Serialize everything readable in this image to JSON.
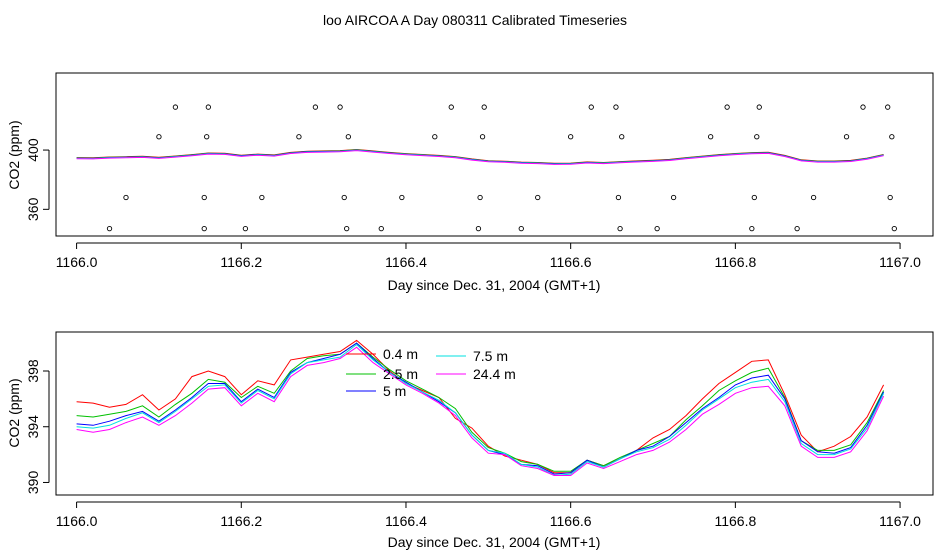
{
  "title": "loo AIRCOA A  Day 080311  Calibrated Timeseries",
  "chart_data": [
    {
      "type": "line",
      "panel": "top",
      "xlabel": "Day since Dec. 31, 2004 (GMT+1)",
      "ylabel": "CO2 (ppm)",
      "xlim": [
        1165.975,
        1167.04
      ],
      "ylim": [
        342,
        452
      ],
      "xticks": [
        "1166.0",
        "1166.2",
        "1166.4",
        "1166.6",
        "1166.8",
        "1167.0"
      ],
      "yticks": [
        "360",
        "400"
      ],
      "grid": false,
      "colors": [
        "#ff0000",
        "#00c000",
        "#0000ff",
        "#00e0e0",
        "#ff00ff"
      ],
      "series_names": [
        "0.4 m",
        "2.5 m",
        "5 m",
        "7.5 m",
        "24.4 m"
      ],
      "line_x": [
        1166.0,
        1166.02,
        1166.04,
        1166.06,
        1166.08,
        1166.1,
        1166.12,
        1166.14,
        1166.16,
        1166.18,
        1166.2,
        1166.22,
        1166.24,
        1166.26,
        1166.28,
        1166.3,
        1166.32,
        1166.34,
        1166.36,
        1166.38,
        1166.4,
        1166.42,
        1166.44,
        1166.46,
        1166.48,
        1166.5,
        1166.52,
        1166.54,
        1166.56,
        1166.58,
        1166.6,
        1166.62,
        1166.64,
        1166.66,
        1166.68,
        1166.7,
        1166.72,
        1166.74,
        1166.76,
        1166.78,
        1166.8,
        1166.82,
        1166.84,
        1166.86,
        1166.88,
        1166.9,
        1166.92,
        1166.94,
        1166.96,
        1166.98
      ],
      "line_y": [
        394.5,
        394.4,
        394.9,
        395.1,
        395.4,
        394.7,
        395.6,
        396.5,
        397.6,
        397.4,
        396.1,
        396.9,
        396.3,
        398.0,
        398.8,
        399.0,
        399.2,
        400.0,
        399.0,
        398.0,
        397.2,
        396.6,
        396.0,
        395.2,
        393.6,
        392.4,
        392.1,
        391.5,
        391.2,
        390.7,
        390.8,
        391.6,
        391.2,
        391.8,
        392.3,
        392.7,
        393.3,
        394.5,
        395.5,
        396.5,
        397.3,
        397.9,
        398.1,
        396.0,
        393.0,
        392.2,
        392.2,
        392.6,
        394.2,
        396.6
      ],
      "points": [
        {
          "x": 1166.04,
          "y": 347
        },
        {
          "x": 1166.06,
          "y": 368
        },
        {
          "x": 1166.1,
          "y": 409
        },
        {
          "x": 1166.12,
          "y": 429
        },
        {
          "x": 1166.155,
          "y": 347
        },
        {
          "x": 1166.155,
          "y": 368
        },
        {
          "x": 1166.158,
          "y": 409
        },
        {
          "x": 1166.16,
          "y": 429
        },
        {
          "x": 1166.205,
          "y": 347
        },
        {
          "x": 1166.225,
          "y": 368
        },
        {
          "x": 1166.27,
          "y": 409
        },
        {
          "x": 1166.29,
          "y": 429
        },
        {
          "x": 1166.32,
          "y": 429
        },
        {
          "x": 1166.325,
          "y": 368
        },
        {
          "x": 1166.328,
          "y": 347
        },
        {
          "x": 1166.33,
          "y": 409
        },
        {
          "x": 1166.37,
          "y": 347
        },
        {
          "x": 1166.395,
          "y": 368
        },
        {
          "x": 1166.435,
          "y": 409
        },
        {
          "x": 1166.455,
          "y": 429
        },
        {
          "x": 1166.488,
          "y": 347
        },
        {
          "x": 1166.49,
          "y": 368
        },
        {
          "x": 1166.493,
          "y": 409
        },
        {
          "x": 1166.495,
          "y": 429
        },
        {
          "x": 1166.54,
          "y": 347
        },
        {
          "x": 1166.56,
          "y": 368
        },
        {
          "x": 1166.6,
          "y": 409
        },
        {
          "x": 1166.625,
          "y": 429
        },
        {
          "x": 1166.655,
          "y": 429
        },
        {
          "x": 1166.658,
          "y": 368
        },
        {
          "x": 1166.66,
          "y": 347
        },
        {
          "x": 1166.662,
          "y": 409
        },
        {
          "x": 1166.705,
          "y": 347
        },
        {
          "x": 1166.725,
          "y": 368
        },
        {
          "x": 1166.77,
          "y": 409
        },
        {
          "x": 1166.79,
          "y": 429
        },
        {
          "x": 1166.82,
          "y": 347
        },
        {
          "x": 1166.823,
          "y": 368
        },
        {
          "x": 1166.826,
          "y": 409
        },
        {
          "x": 1166.829,
          "y": 429
        },
        {
          "x": 1166.875,
          "y": 347
        },
        {
          "x": 1166.895,
          "y": 368
        },
        {
          "x": 1166.935,
          "y": 409
        },
        {
          "x": 1166.955,
          "y": 429
        },
        {
          "x": 1166.985,
          "y": 429
        },
        {
          "x": 1166.988,
          "y": 368
        },
        {
          "x": 1166.99,
          "y": 409
        },
        {
          "x": 1166.993,
          "y": 347
        }
      ]
    },
    {
      "type": "line",
      "panel": "bottom",
      "xlabel": "Day since Dec. 31, 2004 (GMT+1)",
      "ylabel": "CO2 (ppm)",
      "xlim": [
        1165.975,
        1167.04
      ],
      "ylim": [
        389.1,
        400.8
      ],
      "xticks": [
        "1166.0",
        "1166.2",
        "1166.4",
        "1166.6",
        "1166.8",
        "1167.0"
      ],
      "yticks": [
        "390",
        "394",
        "398"
      ],
      "grid": false,
      "legend": "top-center",
      "x": [
        1166.0,
        1166.02,
        1166.04,
        1166.06,
        1166.08,
        1166.1,
        1166.12,
        1166.14,
        1166.16,
        1166.18,
        1166.2,
        1166.22,
        1166.24,
        1166.26,
        1166.28,
        1166.3,
        1166.32,
        1166.34,
        1166.36,
        1166.38,
        1166.4,
        1166.42,
        1166.44,
        1166.46,
        1166.48,
        1166.5,
        1166.52,
        1166.54,
        1166.56,
        1166.58,
        1166.6,
        1166.62,
        1166.64,
        1166.66,
        1166.68,
        1166.7,
        1166.72,
        1166.74,
        1166.76,
        1166.78,
        1166.8,
        1166.82,
        1166.84,
        1166.86,
        1166.88,
        1166.9,
        1166.92,
        1166.94,
        1166.96,
        1166.98
      ],
      "series": [
        {
          "name": "0.4 m",
          "color": "#ff0000",
          "values": [
            395.8,
            395.7,
            395.4,
            395.6,
            396.3,
            395.2,
            396.0,
            397.6,
            398.0,
            397.6,
            396.3,
            397.3,
            397.0,
            398.8,
            399.0,
            399.2,
            399.4,
            400.2,
            399.2,
            398.0,
            397.1,
            396.6,
            396.1,
            394.6,
            393.9,
            392.6,
            391.9,
            391.6,
            391.3,
            390.7,
            390.7,
            391.6,
            391.2,
            391.7,
            392.3,
            393.2,
            393.8,
            394.8,
            396.0,
            397.1,
            397.9,
            398.7,
            398.8,
            396.3,
            393.4,
            392.2,
            392.6,
            393.3,
            394.7,
            397.0
          ]
        },
        {
          "name": "2.5 m",
          "color": "#00c000",
          "values": [
            394.8,
            394.7,
            394.9,
            395.1,
            395.5,
            394.7,
            395.6,
            396.4,
            397.4,
            397.2,
            396.1,
            396.9,
            396.4,
            398.0,
            398.9,
            399.1,
            399.2,
            400.0,
            399.0,
            398.1,
            397.3,
            396.7,
            396.1,
            395.3,
            393.6,
            392.5,
            392.1,
            391.5,
            391.3,
            390.8,
            390.8,
            391.6,
            391.2,
            391.8,
            392.3,
            392.8,
            393.3,
            394.5,
            395.5,
            396.6,
            397.3,
            397.9,
            398.2,
            396.1,
            393.0,
            392.3,
            392.3,
            392.7,
            394.3,
            396.6
          ]
        },
        {
          "name": "5 m",
          "color": "#0000ff",
          "values": [
            394.2,
            394.1,
            394.4,
            394.8,
            395.1,
            394.4,
            395.2,
            396.1,
            397.1,
            397.1,
            395.8,
            396.7,
            396.1,
            397.9,
            398.6,
            398.9,
            399.2,
            400.0,
            398.9,
            397.9,
            397.2,
            396.5,
            395.8,
            395.0,
            393.4,
            392.3,
            392.0,
            391.3,
            391.2,
            390.6,
            390.7,
            391.6,
            391.1,
            391.7,
            392.3,
            392.6,
            393.3,
            394.3,
            395.3,
            396.1,
            397.0,
            397.5,
            397.7,
            396.0,
            393.0,
            392.2,
            392.1,
            392.5,
            394.1,
            396.5
          ]
        },
        {
          "name": "7.5 m",
          "color": "#00e0e0",
          "values": [
            394.0,
            393.9,
            394.1,
            394.6,
            395.0,
            394.3,
            395.1,
            396.0,
            396.9,
            397.0,
            395.7,
            396.6,
            396.0,
            397.8,
            398.6,
            398.8,
            399.0,
            399.9,
            398.8,
            397.9,
            397.1,
            396.5,
            395.9,
            395.0,
            393.4,
            392.3,
            392.1,
            391.3,
            391.1,
            390.5,
            390.6,
            391.5,
            391.1,
            391.7,
            392.2,
            392.5,
            393.1,
            394.1,
            395.2,
            396.0,
            396.8,
            397.2,
            397.4,
            395.8,
            392.8,
            392.0,
            392.0,
            392.4,
            393.9,
            396.4
          ]
        },
        {
          "name": "24.4 m",
          "color": "#ff00ff",
          "values": [
            393.8,
            393.6,
            393.8,
            394.3,
            394.7,
            394.1,
            394.8,
            395.7,
            396.7,
            396.8,
            395.5,
            396.4,
            395.8,
            397.6,
            398.4,
            398.6,
            398.9,
            399.7,
            398.6,
            397.8,
            397.0,
            396.4,
            395.7,
            394.8,
            393.2,
            392.1,
            392.0,
            391.2,
            391.0,
            390.5,
            390.5,
            391.4,
            391.0,
            391.5,
            392.0,
            392.3,
            392.9,
            393.8,
            394.9,
            395.6,
            396.4,
            396.8,
            396.9,
            395.5,
            392.6,
            391.8,
            391.8,
            392.2,
            393.7,
            396.2
          ]
        }
      ]
    }
  ]
}
